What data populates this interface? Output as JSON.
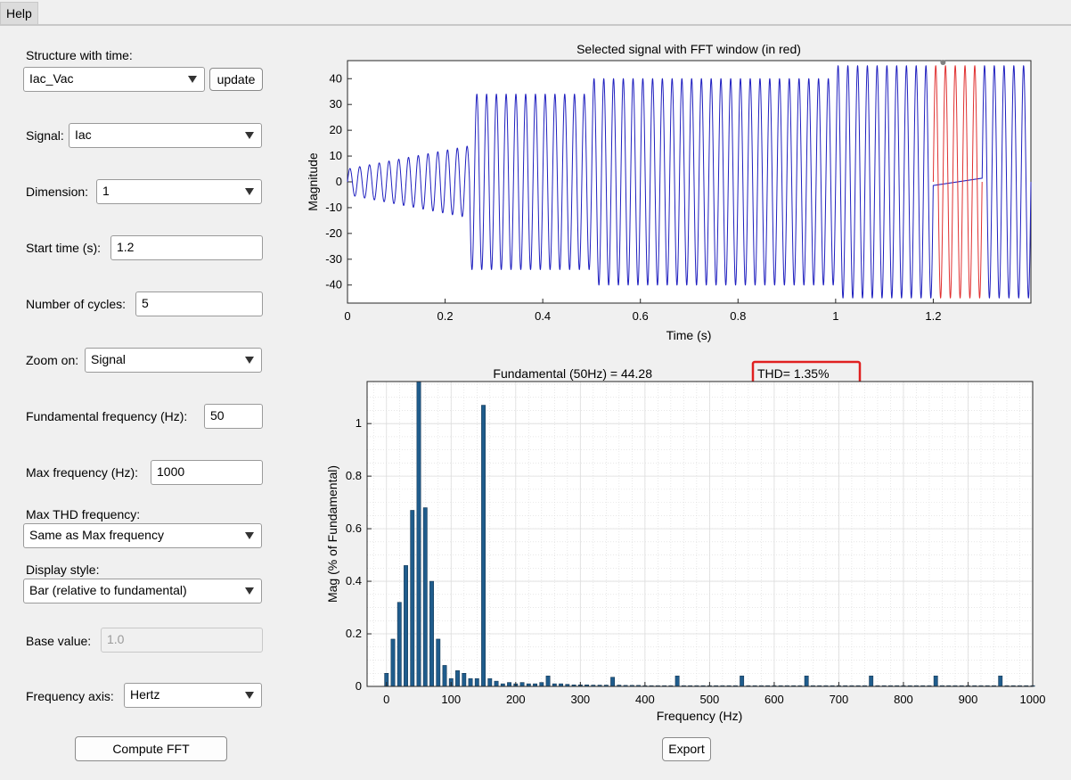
{
  "menubar": {
    "help_label": "Help"
  },
  "panel": {
    "structure_label": "Structure with time:",
    "structure_value": "Iac_Vac",
    "update_label": "update",
    "signal_label": "Signal:",
    "signal_value": "Iac",
    "dimension_label": "Dimension:",
    "dimension_value": "1",
    "start_time_label": "Start time (s):",
    "start_time_value": "1.2",
    "cycles_label": "Number of cycles:",
    "cycles_value": "5",
    "zoom_label": "Zoom on:",
    "zoom_value": "Signal",
    "fund_freq_label": "Fundamental frequency (Hz):",
    "fund_freq_value": "50",
    "max_freq_label": "Max frequency (Hz):",
    "max_freq_value": "1000",
    "max_thd_label": "Max THD frequency:",
    "max_thd_value": "Same as Max frequency",
    "display_style_label": "Display style:",
    "display_style_value": "Bar (relative to fundamental)",
    "base_value_label": "Base value:",
    "base_value_value": "1.0",
    "freq_axis_label": "Frequency axis:",
    "freq_axis_value": "Hertz",
    "compute_label": "Compute FFT",
    "export_label": "Export"
  },
  "colors": {
    "signal": "#1f1fbf",
    "fft_window": "#e03030",
    "bar": "#1f5c8c",
    "highlight": "#e02020"
  },
  "chart_data": [
    {
      "type": "line",
      "title": "Selected signal with FFT window (in red)",
      "xlabel": "Time (s)",
      "ylabel": "Magnitude",
      "xlim": [
        0,
        1.4
      ],
      "ylim": [
        -47,
        47
      ],
      "xticks": [
        "0",
        "0.2",
        "0.4",
        "0.6",
        "0.8",
        "1",
        "1.2"
      ],
      "yticks": [
        "40",
        "30",
        "20",
        "10",
        "0",
        "-10",
        "-20",
        "-30",
        "-40"
      ],
      "grid": false,
      "segments": [
        {
          "t_start": 0,
          "t_end": 0.25,
          "amplitude": "5 rising to 14"
        },
        {
          "t_start": 0.25,
          "t_end": 0.5,
          "amplitude": 34
        },
        {
          "t_start": 0.5,
          "t_end": 1.0,
          "amplitude": 40
        },
        {
          "t_start": 1.0,
          "t_end": 1.4,
          "amplitude": 45
        }
      ],
      "frequency_hz": 50,
      "fft_window": {
        "start": 1.2,
        "end": 1.3
      }
    },
    {
      "type": "bar",
      "title_fundamental": "Fundamental (50Hz) = 44.28",
      "title_thd": "THD= 1.35%",
      "xlabel": "Frequency (Hz)",
      "ylabel": "Mag (% of Fundamental)",
      "xlim": [
        -30,
        1000
      ],
      "ylim": [
        0,
        1.16
      ],
      "xticks": [
        "0",
        "100",
        "200",
        "300",
        "400",
        "500",
        "600",
        "700",
        "800",
        "900",
        "1000"
      ],
      "yticks": [
        "0",
        "0.2",
        "0.4",
        "0.6",
        "0.8",
        "1"
      ],
      "grid": true,
      "x": [
        0,
        10,
        20,
        30,
        40,
        50,
        60,
        70,
        80,
        90,
        100,
        110,
        120,
        130,
        140,
        150,
        160,
        170,
        180,
        190,
        200,
        210,
        220,
        230,
        240,
        250,
        260,
        270,
        280,
        290,
        300,
        310,
        320,
        330,
        340,
        350,
        360,
        370,
        380,
        390,
        400,
        410,
        420,
        430,
        440,
        450,
        460,
        470,
        480,
        490,
        500,
        510,
        520,
        530,
        540,
        550,
        560,
        570,
        580,
        590,
        600,
        610,
        620,
        630,
        640,
        650,
        660,
        670,
        680,
        690,
        700,
        710,
        720,
        730,
        740,
        750,
        760,
        770,
        780,
        790,
        800,
        810,
        820,
        830,
        840,
        850,
        860,
        870,
        880,
        890,
        900,
        910,
        920,
        930,
        940,
        950,
        960,
        970,
        980,
        990,
        1000
      ],
      "values": [
        0.05,
        0.18,
        0.32,
        0.46,
        0.67,
        1.16,
        0.68,
        0.4,
        0.18,
        0.08,
        0.03,
        0.06,
        0.05,
        0.03,
        0.03,
        1.07,
        0.03,
        0.02,
        0.01,
        0.015,
        0.01,
        0.015,
        0.01,
        0.01,
        0.015,
        0.04,
        0.01,
        0.01,
        0.008,
        0.006,
        0.006,
        0.006,
        0.005,
        0.005,
        0.005,
        0.035,
        0.005,
        0.004,
        0.004,
        0.004,
        0.003,
        0.003,
        0.003,
        0.003,
        0.003,
        0.04,
        0.003,
        0.003,
        0.003,
        0.003,
        0.003,
        0.003,
        0.003,
        0.003,
        0.003,
        0.04,
        0.003,
        0.003,
        0.003,
        0.003,
        0.003,
        0.003,
        0.003,
        0.003,
        0.003,
        0.04,
        0.003,
        0.003,
        0.003,
        0.003,
        0.003,
        0.003,
        0.003,
        0.003,
        0.003,
        0.04,
        0.003,
        0.003,
        0.003,
        0.003,
        0.003,
        0.003,
        0.003,
        0.003,
        0.003,
        0.04,
        0.003,
        0.003,
        0.003,
        0.003,
        0.003,
        0.003,
        0.003,
        0.003,
        0.003,
        0.04,
        0.003,
        0.003,
        0.003,
        0.003,
        0.003
      ]
    }
  ]
}
